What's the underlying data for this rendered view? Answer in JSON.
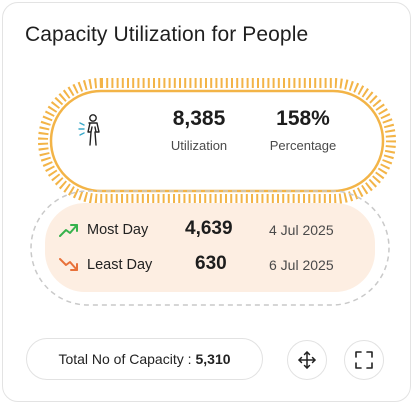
{
  "card": {
    "title": "Capacity Utilization for People"
  },
  "utilization": {
    "icon": "person-icon",
    "accent_color": "#f3b447",
    "count_value": "8,385",
    "count_label": "Utilization",
    "percent_value": "158%",
    "percent_label": "Percentage"
  },
  "days": {
    "most": {
      "icon": "trend-up-icon",
      "color": "#37b24d",
      "label": "Most Day",
      "value": "4,639",
      "date": "4 Jul 2025"
    },
    "least": {
      "icon": "trend-down-icon",
      "color": "#e8713a",
      "label": "Least Day",
      "value": "630",
      "date": "6 Jul 2025"
    }
  },
  "footer": {
    "total_label": "Total No of Capacity :",
    "total_value": "5,310",
    "move_icon": "move-icon",
    "expand_icon": "expand-icon"
  }
}
